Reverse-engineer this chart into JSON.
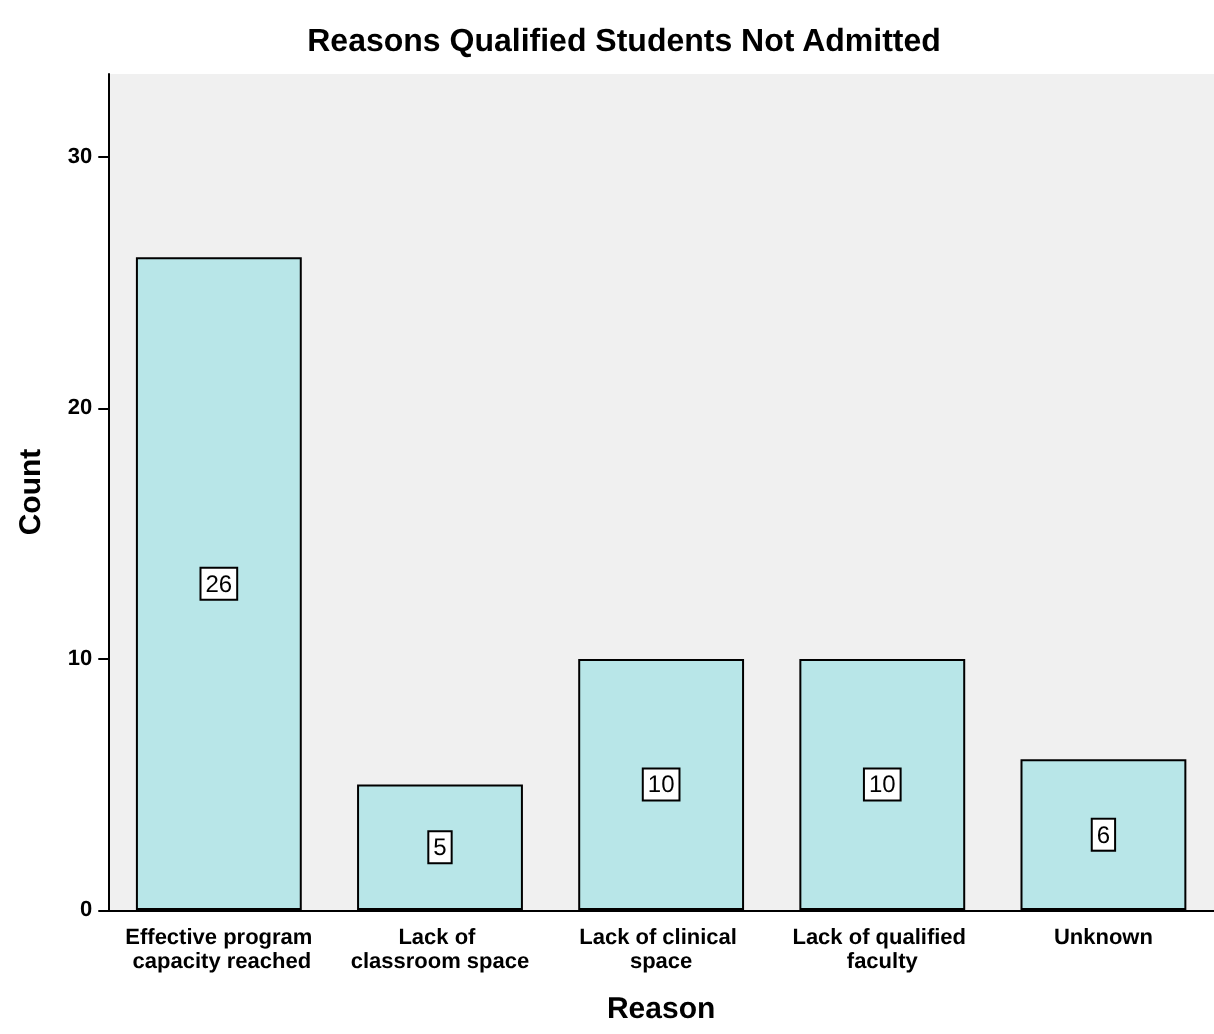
{
  "chart_data": {
    "type": "bar",
    "title": "Reasons Qualified Students Not Admitted",
    "xlabel": "Reason",
    "ylabel": "Count",
    "categories": [
      "Effective program capacity reached",
      "Lack of classroom space",
      "Lack of clinical space",
      "Lack of qualified faculty",
      "Unknown"
    ],
    "values": [
      26,
      5,
      10,
      10,
      6
    ],
    "color": "#b8e6e8",
    "ylim": [
      0,
      33.3
    ],
    "yticks": [
      0,
      10,
      20,
      30
    ],
    "grid": false,
    "data_labels": true
  }
}
